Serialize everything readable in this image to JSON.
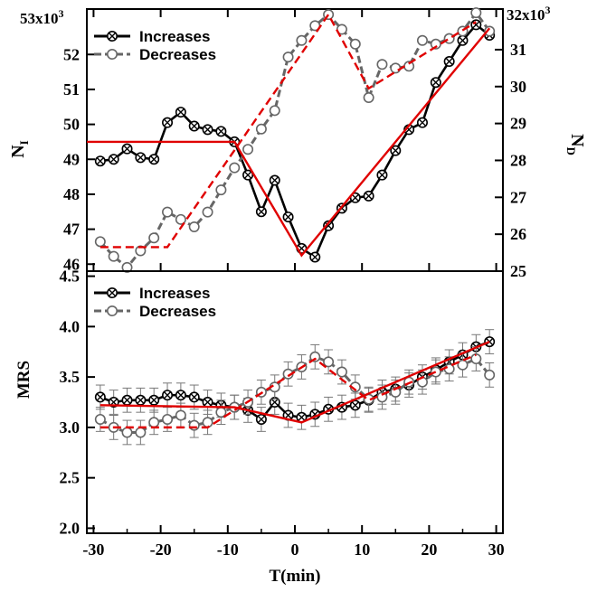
{
  "chart_data": [
    {
      "type": "line",
      "panel": "top",
      "x": [
        -29,
        -27,
        -25,
        -23,
        -21,
        -19,
        -17,
        -15,
        -13,
        -11,
        -9,
        -7,
        -5,
        -3,
        -1,
        1,
        3,
        5,
        7,
        9,
        11,
        13,
        15,
        17,
        19,
        21,
        23,
        25,
        27,
        29
      ],
      "xlim": [
        -31,
        31
      ],
      "xticks": [
        "-30",
        "-20",
        "-10",
        "0",
        "10",
        "20",
        "30"
      ],
      "xlabel": "T(min)",
      "ylabel_left": "N",
      "ylabel_left_sub": "I",
      "ylabel_right": "N",
      "ylabel_right_sub": "D",
      "ylim_left": [
        45.8,
        53.3
      ],
      "ylim_right": [
        25,
        32.1
      ],
      "yticks_left": [
        "46",
        "47",
        "48",
        "49",
        "50",
        "51",
        "52"
      ],
      "yticks_right": [
        "25",
        "26",
        "27",
        "28",
        "29",
        "30",
        "31"
      ],
      "y_multiplier_left": "53x10",
      "y_multiplier_left_exp": "3",
      "y_multiplier_right": "32x10",
      "y_multiplier_right_exp": "3",
      "legend_position": "top-left",
      "series": [
        {
          "name": "Increases",
          "axis": "left",
          "marker": "circle-x",
          "color": "#000000",
          "values": [
            48.95,
            49.0,
            49.3,
            49.05,
            49.0,
            50.05,
            50.35,
            49.95,
            49.85,
            49.8,
            49.5,
            48.55,
            47.5,
            48.4,
            47.35,
            46.45,
            46.2,
            47.1,
            47.6,
            47.9,
            47.95,
            48.55,
            49.25,
            49.85,
            50.05,
            51.2,
            51.8,
            52.4,
            52.85,
            52.55
          ]
        },
        {
          "name": "Decreases",
          "axis": "right",
          "marker": "circle-open",
          "color": "#666666",
          "values": [
            25.8,
            25.4,
            25.1,
            25.55,
            25.9,
            26.6,
            26.4,
            26.2,
            26.6,
            27.2,
            27.8,
            28.3,
            28.85,
            29.35,
            30.8,
            31.25,
            31.65,
            31.95,
            31.55,
            31.15,
            29.7,
            30.6,
            30.5,
            30.55,
            31.25,
            31.15,
            31.3,
            31.5,
            32.0,
            31.5
          ]
        }
      ],
      "fit_lines": [
        {
          "axis": "left",
          "style": "solid",
          "color": "#e00000",
          "points": [
            [
              -31,
              49.5
            ],
            [
              -9,
              49.5
            ],
            [
              1,
              46.25
            ],
            [
              29,
              52.75
            ]
          ]
        },
        {
          "axis": "right",
          "style": "dashed",
          "color": "#e00000",
          "points": [
            [
              -29,
              25.65
            ],
            [
              -19,
              25.65
            ],
            [
              5,
              31.95
            ],
            [
              11,
              29.95
            ],
            [
              27,
              31.75
            ]
          ]
        }
      ]
    },
    {
      "type": "line",
      "panel": "bottom",
      "x": [
        -29,
        -27,
        -25,
        -23,
        -21,
        -19,
        -17,
        -15,
        -13,
        -11,
        -9,
        -7,
        -5,
        -3,
        -1,
        1,
        3,
        5,
        7,
        9,
        11,
        13,
        15,
        17,
        19,
        21,
        23,
        25,
        27,
        29
      ],
      "xlim": [
        -31,
        31
      ],
      "xticks": [
        "-30",
        "-20",
        "-10",
        "0",
        "10",
        "20",
        "30"
      ],
      "xlabel": "T(min)",
      "ylabel": "MRS",
      "ylim": [
        1.95,
        4.55
      ],
      "yticks": [
        "2.0",
        "2.5",
        "3.0",
        "3.5",
        "4.0",
        "4.5"
      ],
      "legend_position": "top-left",
      "series": [
        {
          "name": "Increases",
          "marker": "circle-x",
          "color": "#000000",
          "values": [
            3.3,
            3.25,
            3.27,
            3.27,
            3.27,
            3.32,
            3.32,
            3.3,
            3.25,
            3.22,
            3.2,
            3.17,
            3.08,
            3.25,
            3.12,
            3.1,
            3.13,
            3.18,
            3.2,
            3.22,
            3.27,
            3.35,
            3.38,
            3.42,
            3.5,
            3.57,
            3.65,
            3.72,
            3.8,
            3.85
          ],
          "error": 0.12
        },
        {
          "name": "Decreases",
          "marker": "circle-open",
          "color": "#666666",
          "values": [
            3.08,
            3.0,
            2.95,
            2.95,
            3.05,
            3.08,
            3.12,
            3.02,
            3.05,
            3.15,
            3.2,
            3.25,
            3.35,
            3.4,
            3.53,
            3.6,
            3.7,
            3.65,
            3.55,
            3.4,
            3.28,
            3.3,
            3.35,
            3.45,
            3.45,
            3.55,
            3.58,
            3.62,
            3.68,
            3.52
          ],
          "error": 0.12
        }
      ],
      "fit_lines": [
        {
          "style": "solid",
          "color": "#e00000",
          "points": [
            [
              -29,
              3.22
            ],
            [
              -9,
              3.2
            ],
            [
              1,
              3.05
            ],
            [
              29,
              3.85
            ]
          ]
        },
        {
          "style": "dashed",
          "color": "#e00000",
          "points": [
            [
              -29,
              3.0
            ],
            [
              -13,
              3.0
            ],
            [
              3,
              3.68
            ],
            [
              11,
              3.27
            ],
            [
              27,
              3.72
            ]
          ]
        }
      ]
    }
  ]
}
